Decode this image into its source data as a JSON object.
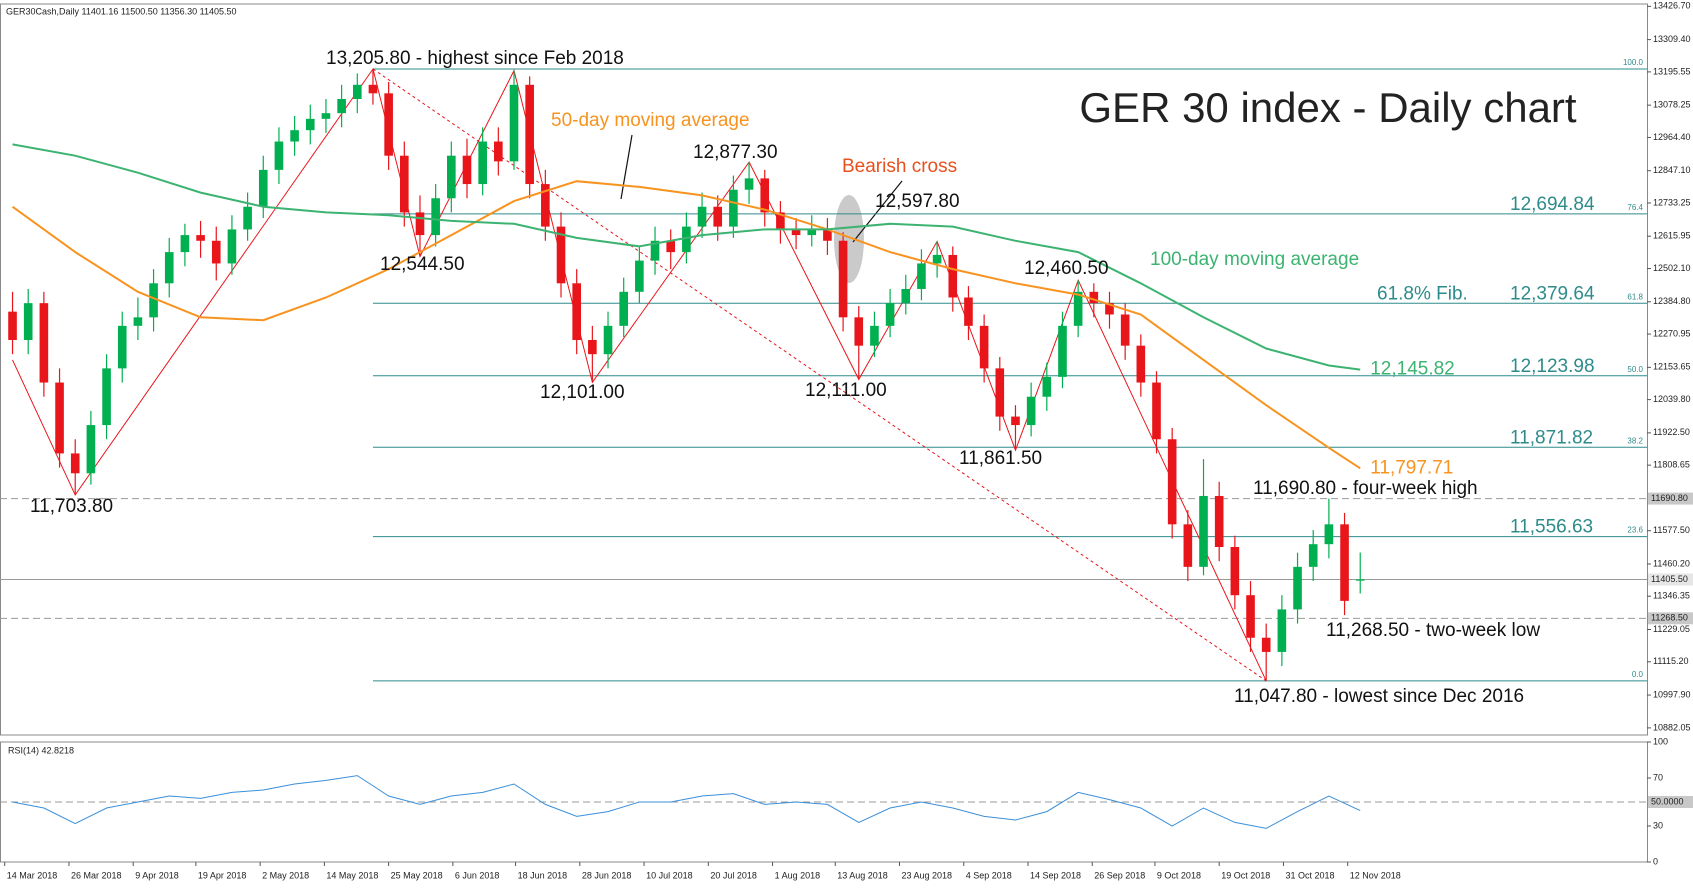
{
  "chart_data": {
    "type": "candlestick",
    "title": "GER 30 index - Daily chart",
    "header": "GER30Cash,Daily  11401.16 11500.50 11356.30 11405.50",
    "xlim": [
      -0.8,
      104.3
    ],
    "xticks": [
      {
        "value": -0.5,
        "label": "14 Mar 2018"
      },
      {
        "value": 3.6,
        "label": "26 Mar 2018"
      },
      {
        "value": 7.7,
        "label": "9 Apr 2018"
      },
      {
        "value": 11.7,
        "label": "19 Apr 2018"
      },
      {
        "value": 15.8,
        "label": "2 May 2018"
      },
      {
        "value": 19.9,
        "label": "14 May 2018"
      },
      {
        "value": 24,
        "label": "25 May 2018"
      },
      {
        "value": 28.1,
        "label": "6 Jun 2018"
      },
      {
        "value": 32.1,
        "label": "18 Jun 2018"
      },
      {
        "value": 36.2,
        "label": "28 Jun 2018"
      },
      {
        "value": 40.3,
        "label": "10 Jul 2018"
      },
      {
        "value": 44.4,
        "label": "20 Jul 2018"
      },
      {
        "value": 48.5,
        "label": "1 Aug 2018"
      },
      {
        "value": 52.5,
        "label": "13 Aug 2018"
      },
      {
        "value": 56.6,
        "label": "23 Aug 2018"
      },
      {
        "value": 60.7,
        "label": "4 Sep 2018"
      },
      {
        "value": 64.8,
        "label": "14 Sep 2018"
      },
      {
        "value": 68.9,
        "label": "26 Sep 2018"
      },
      {
        "value": 72.9,
        "label": "9 Oct 2018"
      },
      {
        "value": 77,
        "label": "19 Oct 2018"
      },
      {
        "value": 81.1,
        "label": "31 Oct 2018"
      },
      {
        "value": 85.2,
        "label": "12 Nov 2018"
      }
    ],
    "ylim": [
      10857,
      13435
    ],
    "yticks": [
      {
        "value": 13426.7,
        "label": "13426.70"
      },
      {
        "value": 13309.4,
        "label": "13309.40"
      },
      {
        "value": 13195.55,
        "label": "13195.55"
      },
      {
        "value": 13078.25,
        "label": "13078.25"
      },
      {
        "value": 12964.4,
        "label": "12964.40"
      },
      {
        "value": 12847.1,
        "label": "12847.10"
      },
      {
        "value": 12733.25,
        "label": "12733.25"
      },
      {
        "value": 12615.95,
        "label": "12615.95"
      },
      {
        "value": 12502.1,
        "label": "12502.10"
      },
      {
        "value": 12384.8,
        "label": "12384.80"
      },
      {
        "value": 12270.95,
        "label": "12270.95"
      },
      {
        "value": 12153.65,
        "label": "12153.65"
      },
      {
        "value": 12039.8,
        "label": "12039.80"
      },
      {
        "value": 11922.5,
        "label": "11922.50"
      },
      {
        "value": 11808.65,
        "label": "11808.65"
      },
      {
        "value": 11577.5,
        "label": "11577.50"
      },
      {
        "value": 11460.2,
        "label": "11460.20"
      },
      {
        "value": 11346.35,
        "label": "11346.35"
      },
      {
        "value": 11229.05,
        "label": "11229.05"
      },
      {
        "value": 11115.2,
        "label": "11115.20"
      },
      {
        "value": 10997.9,
        "label": "10997.90"
      },
      {
        "value": 10882.05,
        "label": "10882.05"
      }
    ],
    "up_color": "#00b050",
    "down_color": "#e8161b",
    "candles": {
      "open": [
        12350,
        12250,
        12380,
        12100,
        11850,
        11780,
        11950,
        12150,
        12300,
        12330,
        12450,
        12560,
        12620,
        12600,
        12520,
        12640,
        12720,
        12850,
        12950,
        12990,
        13030,
        13050,
        13100,
        13150,
        13120,
        12900,
        12700,
        12620,
        12750,
        12900,
        12800,
        12950,
        12880,
        13150,
        12800,
        12650,
        12450,
        12250,
        12200,
        12300,
        12420,
        12530,
        12600,
        12560,
        12650,
        12720,
        12650,
        12780,
        12820,
        12700,
        12640,
        12620,
        12640,
        12600,
        12330,
        12230,
        12300,
        12380,
        12430,
        12520,
        12550,
        12400,
        12300,
        12150,
        11980,
        11950,
        12050,
        12120,
        12300,
        12420,
        12380,
        12340,
        12230,
        12100,
        11900,
        11600,
        11450,
        11700,
        11520,
        11350,
        11200,
        11150,
        11300,
        11450,
        11530,
        11600,
        11401.16
      ],
      "high": [
        12420,
        12430,
        12420,
        12150,
        11900,
        12000,
        12200,
        12350,
        12400,
        12500,
        12610,
        12660,
        12670,
        12650,
        12690,
        12770,
        12900,
        13000,
        13040,
        13080,
        13100,
        13150,
        13190,
        13205.8,
        13160,
        12950,
        12760,
        12800,
        12950,
        12960,
        13000,
        13000,
        13200,
        13180,
        12850,
        12700,
        12500,
        12300,
        12350,
        12470,
        12580,
        12650,
        12640,
        12700,
        12770,
        12760,
        12830,
        12877.3,
        12850,
        12740,
        12680,
        12690,
        12680,
        12630,
        12370,
        12350,
        12430,
        12480,
        12570,
        12597.8,
        12580,
        12440,
        12340,
        12190,
        12020,
        12100,
        12170,
        12350,
        12460.5,
        12450,
        12420,
        12380,
        12270,
        12140,
        11940,
        11650,
        11830,
        11750,
        11560,
        11400,
        11250,
        11350,
        11500,
        11580,
        11690.8,
        11640,
        11500.5
      ],
      "low": [
        12200,
        12200,
        12050,
        11800,
        11703.8,
        11740,
        11900,
        12100,
        12250,
        12280,
        12400,
        12510,
        12540,
        12460,
        12480,
        12600,
        12680,
        12800,
        12900,
        12940,
        12980,
        13000,
        13050,
        13080,
        12850,
        12650,
        12544.5,
        12580,
        12700,
        12750,
        12760,
        12830,
        12850,
        12750,
        12600,
        12400,
        12200,
        12101,
        12150,
        12260,
        12380,
        12480,
        12500,
        12520,
        12610,
        12600,
        12610,
        12730,
        12650,
        12590,
        12570,
        12580,
        12550,
        12280,
        12111,
        12190,
        12260,
        12340,
        12390,
        12470,
        12350,
        12250,
        12100,
        11930,
        11861.5,
        11910,
        12000,
        12080,
        12260,
        12330,
        12290,
        12180,
        12050,
        11850,
        11550,
        11400,
        11420,
        11470,
        11300,
        11150,
        11047.8,
        11100,
        11250,
        11400,
        11480,
        11280,
        11356.3
      ],
      "close": [
        12250,
        12380,
        12100,
        11850,
        11780,
        11950,
        12150,
        12300,
        12330,
        12450,
        12560,
        12620,
        12600,
        12520,
        12640,
        12720,
        12850,
        12950,
        12990,
        13030,
        13050,
        13100,
        13150,
        13120,
        12900,
        12700,
        12620,
        12750,
        12900,
        12800,
        12950,
        12880,
        13150,
        12800,
        12650,
        12450,
        12250,
        12200,
        12300,
        12420,
        12530,
        12600,
        12560,
        12650,
        12720,
        12650,
        12780,
        12820,
        12700,
        12640,
        12620,
        12640,
        12600,
        12330,
        12230,
        12300,
        12380,
        12430,
        12520,
        12550,
        12400,
        12300,
        12150,
        11980,
        11950,
        12050,
        12120,
        12300,
        12420,
        12380,
        12340,
        12230,
        12100,
        11900,
        11600,
        11450,
        11700,
        11520,
        11350,
        11200,
        11150,
        11300,
        11450,
        11530,
        11600,
        11330,
        11405.5
      ]
    },
    "series": [
      {
        "name": "50-day moving average",
        "color": "#f7931e",
        "end_label": "11,797.71",
        "x": [
          0,
          4,
          8,
          12,
          16,
          20,
          24,
          28,
          32,
          36,
          40,
          44,
          48,
          52,
          56,
          60,
          64,
          68,
          72,
          76,
          80,
          84,
          86
        ],
        "values": [
          12720,
          12560,
          12420,
          12330,
          12320,
          12400,
          12500,
          12620,
          12740,
          12810,
          12790,
          12760,
          12710,
          12640,
          12560,
          12500,
          12450,
          12410,
          12340,
          12180,
          12020,
          11870,
          11797.71
        ]
      },
      {
        "name": "100-day moving average",
        "color": "#3cb371",
        "end_label": "12,145.82",
        "x": [
          0,
          4,
          8,
          12,
          16,
          20,
          24,
          28,
          32,
          36,
          40,
          44,
          48,
          52,
          56,
          60,
          64,
          68,
          72,
          76,
          80,
          84,
          86
        ],
        "values": [
          12940,
          12900,
          12840,
          12770,
          12720,
          12700,
          12690,
          12670,
          12660,
          12610,
          12580,
          12620,
          12640,
          12640,
          12660,
          12650,
          12600,
          12560,
          12450,
          12330,
          12220,
          12160,
          12145.82
        ]
      }
    ],
    "fib": {
      "color": "#2e8b8b",
      "x_start": 23,
      "label": "61.8% Fib.",
      "levels": [
        {
          "ratio": {
            "value": 100,
            "label": "100.0"
          },
          "price": 13205.8
        },
        {
          "ratio": 76.4,
          "price": 12694.84,
          "price_label": "12,694.84"
        },
        {
          "ratio": 61.8,
          "price": 12379.64,
          "price_label": "12,379.64"
        },
        {
          "ratio": {
            "value": 50,
            "label": "50.0"
          },
          "price": 12123.98,
          "price_label": "12,123.98"
        },
        {
          "ratio": 38.2,
          "price": 11871.82,
          "price_label": "11,871.82"
        },
        {
          "ratio": 23.6,
          "price": 11556.63,
          "price_label": "11,556.63"
        },
        {
          "ratio": {
            "value": 0,
            "label": "0.0"
          },
          "price": 11047.8
        }
      ]
    },
    "zigzag": {
      "color": "#e8161b",
      "x": [
        0,
        4,
        23,
        26,
        32,
        37,
        47,
        54,
        59,
        64,
        68,
        80
      ],
      "values": [
        12180,
        11703.8,
        13205.8,
        12544.5,
        13200,
        12101,
        12877.3,
        12111,
        12597.8,
        11861.5,
        12460.5,
        11047.8
      ]
    },
    "trendline": {
      "color": "#e8161b",
      "x": [
        23,
        80
      ],
      "values": [
        13205.8,
        11047.8
      ]
    },
    "levels": [
      {
        "value": 11690.8,
        "label": "11690.80",
        "style": "dashed"
      },
      {
        "value": 11405.5,
        "label": "11405.50",
        "style": "solid"
      },
      {
        "value": 11268.5,
        "label": "11268.50",
        "style": "dashed"
      }
    ],
    "annotations": [
      {
        "text": "13,205.80 - highest since Feb 2018",
        "color": "#111111"
      },
      {
        "text": "12,877.30",
        "color": "#111111"
      },
      {
        "text": "Bearish cross",
        "color": "#e8501e"
      },
      {
        "text": "12,597.80",
        "color": "#111111"
      },
      {
        "text": "12,544.50",
        "color": "#111111"
      },
      {
        "text": "12,460.50",
        "color": "#111111"
      },
      {
        "text": "12,101.00",
        "color": "#111111"
      },
      {
        "text": "12,111.00",
        "color": "#111111"
      },
      {
        "text": "11,861.50",
        "color": "#111111"
      },
      {
        "text": "11,703.80",
        "color": "#111111"
      },
      {
        "text": "11,690.80 - four-week high",
        "color": "#111111"
      },
      {
        "text": "11,268.50 - two-week low",
        "color": "#111111"
      },
      {
        "text": "11,047.80 - lowest since Dec 2016",
        "color": "#111111"
      }
    ],
    "rsi": {
      "title": "RSI(14) 42.8218",
      "color": "#3b8fd9",
      "ylim": [
        0,
        100
      ],
      "yticks": [
        100,
        70,
        30,
        0
      ],
      "level": {
        "value": 50,
        "label": "50.0000"
      },
      "x": [
        0,
        2,
        4,
        6,
        8,
        10,
        12,
        14,
        16,
        18,
        20,
        22,
        24,
        26,
        28,
        30,
        32,
        34,
        36,
        38,
        40,
        42,
        44,
        46,
        48,
        50,
        52,
        54,
        56,
        58,
        60,
        62,
        64,
        66,
        68,
        70,
        72,
        74,
        76,
        78,
        80,
        82,
        84,
        86
      ],
      "values": [
        50,
        45,
        32,
        45,
        50,
        55,
        53,
        58,
        60,
        65,
        68,
        72,
        55,
        48,
        55,
        58,
        65,
        48,
        38,
        42,
        50,
        50,
        55,
        57,
        48,
        50,
        48,
        33,
        45,
        50,
        45,
        38,
        35,
        42,
        58,
        52,
        45,
        30,
        45,
        33,
        28,
        42,
        55,
        42.82
      ]
    }
  }
}
